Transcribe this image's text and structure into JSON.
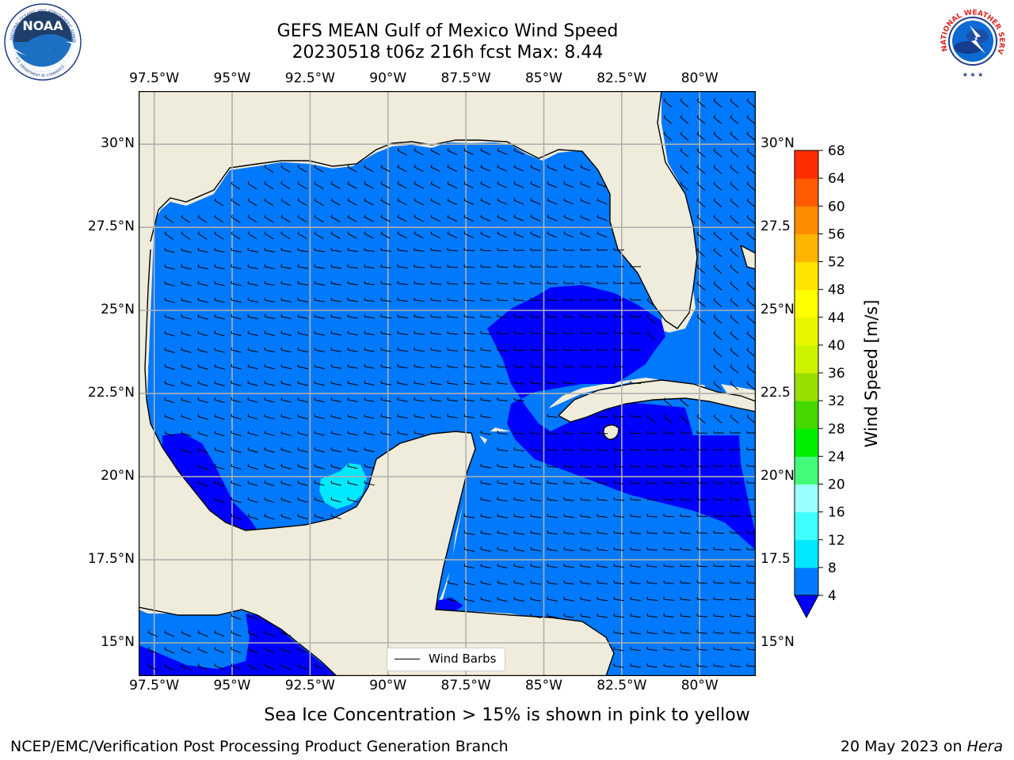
{
  "title": {
    "line1": "GEFS MEAN Gulf of Mexico Wind Speed",
    "line2": "20230518 t06z 216h fcst   Max: 8.44"
  },
  "map": {
    "lon_labels": [
      "97.5°W",
      "95°W",
      "92.5°W",
      "90°W",
      "87.5°W",
      "85°W",
      "82.5°W",
      "80°W"
    ],
    "lon_values": [
      -97.5,
      -95,
      -92.5,
      -90,
      -87.5,
      -85,
      -82.5,
      -80
    ],
    "lat_labels_left": [
      "30°N",
      "27.5°N",
      "25°N",
      "22.5°N",
      "20°N",
      "17.5°N",
      "15°N"
    ],
    "lat_labels_right": [
      "30°N",
      "27.5",
      "25°N",
      "22.5",
      "20°N",
      "17.5",
      "15°N"
    ],
    "lat_values": [
      30,
      27.5,
      25,
      22.5,
      20,
      17.5,
      15
    ],
    "lon_range": [
      -98,
      -78.2
    ],
    "lat_range": [
      14,
      31.6
    ],
    "land_color": "#efecdc",
    "ocean_color": "#0079fc",
    "grid_color": "#b0b0b0"
  },
  "legend": {
    "label": "Wind Barbs"
  },
  "colorbar": {
    "label": "Wind Speed [m/s]",
    "tick_labels": [
      "68",
      "64",
      "60",
      "56",
      "52",
      "48",
      "44",
      "40",
      "36",
      "32",
      "28",
      "24",
      "20",
      "16",
      "12",
      "8",
      "4"
    ],
    "levels": [
      4,
      8,
      12,
      16,
      20,
      24,
      28,
      32,
      36,
      40,
      44,
      48,
      52,
      56,
      60,
      64,
      68
    ],
    "colors": [
      "#0079ff",
      "#00e8ff",
      "#40ffff",
      "#9affff",
      "#45f97a",
      "#00ef00",
      "#44d800",
      "#9add00",
      "#ccf200",
      "#e6f700",
      "#ffff00",
      "#ffe300",
      "#ffb400",
      "#ff8b00",
      "#ff5a00",
      "#ff2e00",
      "#ff0000"
    ],
    "under_color": "#0000ff"
  },
  "footer": {
    "note": "Sea Ice Concentration > 15% is shown in pink to yellow",
    "credit": "NCEP/EMC/Verification Post Processing Product Generation Branch",
    "date": "20 May 2023 on",
    "host": "Hera"
  },
  "logos": {
    "noaa_text": "NOAA",
    "noaa_ring": "NATIONAL OCEANIC AND ATMOSPHERIC ADMINISTRATION",
    "noaa_ring_bottom": "U.S. DEPARTMENT OF COMMERCE",
    "nws_ring": "NATIONAL WEATHER SERVICE"
  },
  "chart_data": {
    "type": "heatmap",
    "variable": "wind speed (m/s)",
    "max": 8.44,
    "dominant_band": [
      4,
      8
    ],
    "below_4_regions": [
      "Straits of Florida / Cuba approaches",
      "Caribbean south of Cuba",
      "western Bay of Campeche coast",
      "SW Caribbean off Honduras"
    ],
    "band_8_12_regions": [
      "Bay of Campeche near 20°N 91.5°W"
    ]
  }
}
